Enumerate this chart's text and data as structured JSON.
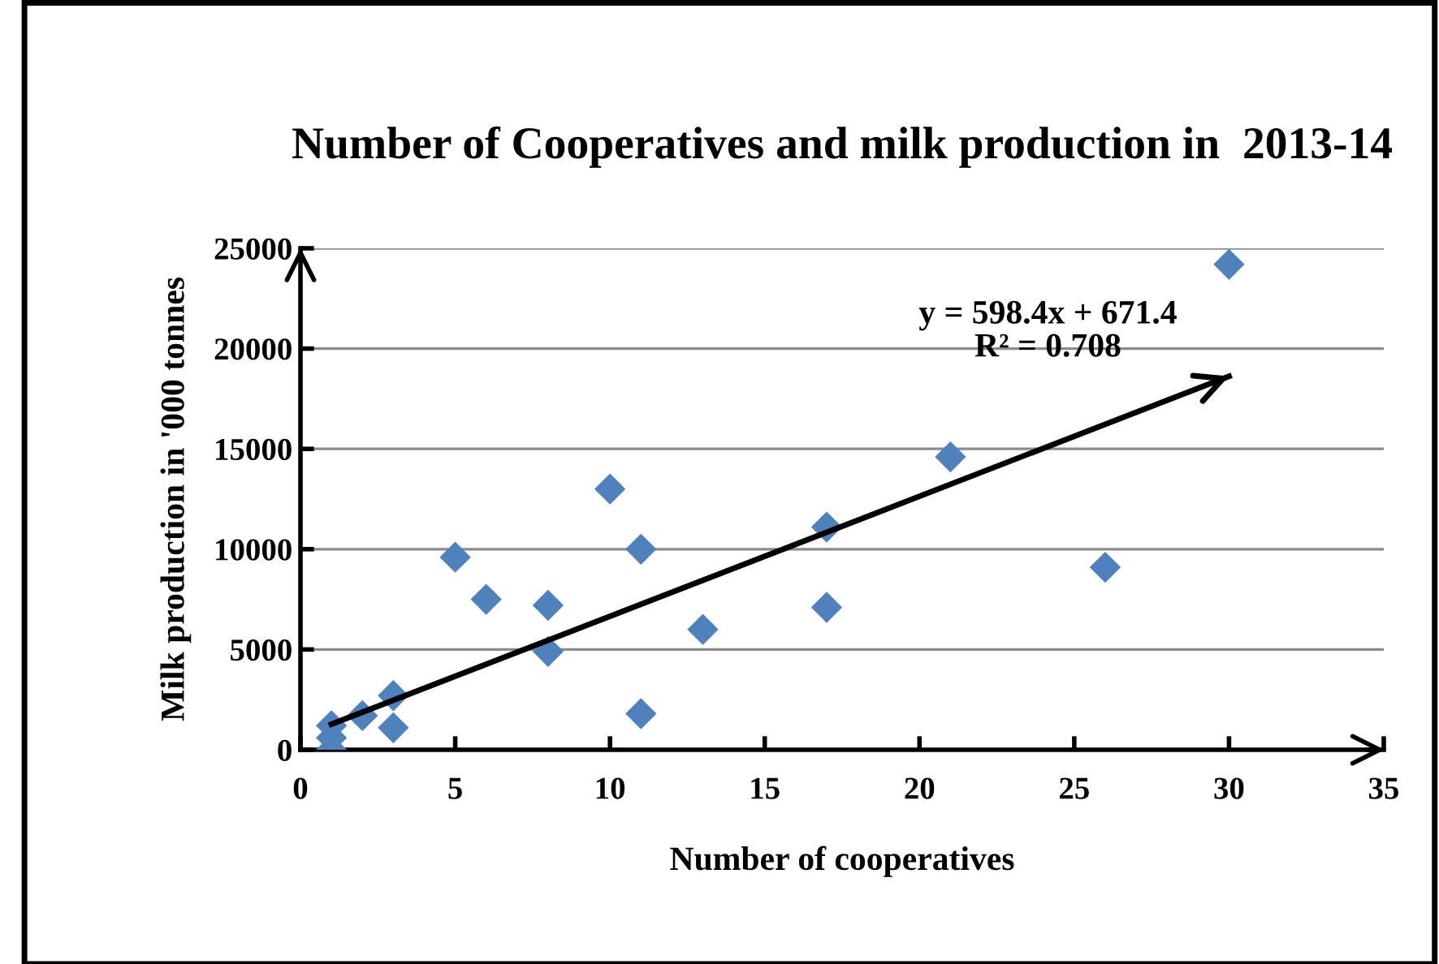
{
  "chart_data": {
    "type": "scatter",
    "title": "Number of Cooperatives and milk production in  2013-14",
    "xlabel": "Number of cooperatives",
    "ylabel": "Milk production in '000 tonnes",
    "xlim": [
      0,
      35
    ],
    "xticks": [
      0,
      5,
      10,
      15,
      20,
      25,
      30,
      35
    ],
    "ylim": [
      0,
      25000
    ],
    "yticks": [
      0,
      5000,
      10000,
      15000,
      20000,
      25000
    ],
    "grid": "y",
    "series": [
      {
        "color": "#4f81bd",
        "marker": "diamond",
        "x": [
          1,
          1,
          1,
          2,
          3,
          3,
          5,
          6,
          8,
          8,
          10,
          11,
          11,
          13,
          17,
          17,
          21,
          26,
          30
        ],
        "values": [
          1200,
          600,
          0,
          1700,
          2700,
          1100,
          9600,
          7500,
          7200,
          4900,
          13000,
          10000,
          1800,
          6000,
          11100,
          7100,
          14600,
          9100,
          24200
        ]
      },
      {
        "type": "line",
        "color": "#000000",
        "marker": "none",
        "x": [
          1,
          30
        ],
        "values": [
          1270,
          18620
        ]
      }
    ],
    "annotations": [
      "y = 598.4x + 671.4\nR² = 0.708"
    ]
  }
}
